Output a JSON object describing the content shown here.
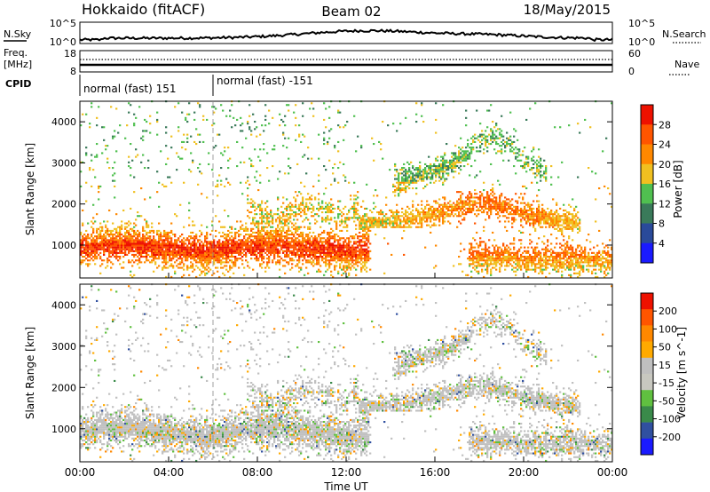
{
  "header": {
    "left_title": "Hokkaido (fitACF)",
    "center_title": "Beam 02",
    "right_title": "18/May/2015"
  },
  "noise_panel": {
    "left_label": "N.Sky",
    "right_label": "N.Search",
    "left_ticks": [
      "10^5",
      "10^0"
    ],
    "right_ticks": [
      "10^5",
      "10^0"
    ]
  },
  "freq_panel": {
    "left_label_line1": "Freq.",
    "left_label_line2": "[MHz]",
    "right_label": "Nave",
    "left_ticks": [
      "18",
      "8"
    ],
    "right_ticks": [
      "60",
      "0"
    ]
  },
  "cpid_panel": {
    "label": "CPID",
    "programs": [
      {
        "name": "normal (fast) 151",
        "start_hour": 0
      },
      {
        "name": "normal (fast) -151",
        "start_hour": 6
      }
    ]
  },
  "colors": {
    "power_scale": [
      "#1a1aff",
      "#2a4a9a",
      "#3a7a5a",
      "#50c050",
      "#f0c020",
      "#ff8800",
      "#ff5500",
      "#ee1100"
    ],
    "velocity_scale": [
      "#ee1100",
      "#ff5500",
      "#ff8800",
      "#ffaa00",
      "#c0c0c0",
      "#c8c8c0",
      "#60c040",
      "#3a8a4a",
      "#3050a0",
      "#1a1aff"
    ]
  },
  "chart_data": [
    {
      "type": "heatmap",
      "name": "power",
      "ylabel": "Slant Range [km]",
      "yticks": [
        "1000",
        "2000",
        "3000",
        "4000"
      ],
      "ylim": [
        200,
        4500
      ],
      "xlim": [
        0,
        24
      ],
      "colorbar_label": "Power [dB]",
      "colorbar_ticks": [
        "4",
        "8",
        "12",
        "16",
        "20",
        "24",
        "28"
      ],
      "colorbar_range": [
        0,
        32
      ]
    },
    {
      "type": "heatmap",
      "name": "velocity",
      "ylabel": "Slant Range [km]",
      "yticks": [
        "1000",
        "2000",
        "3000",
        "4000"
      ],
      "ylim": [
        200,
        4500
      ],
      "xlim": [
        0,
        24
      ],
      "colorbar_label": "Velocity [m s^-1]",
      "colorbar_ticks": [
        "200",
        "100",
        "50",
        "15",
        "-15",
        "-50",
        "-100",
        "-200"
      ]
    }
  ],
  "xaxis": {
    "label": "Time UT",
    "ticks": [
      "00:00",
      "04:00",
      "08:00",
      "12:00",
      "16:00",
      "20:00",
      "00:00"
    ]
  }
}
